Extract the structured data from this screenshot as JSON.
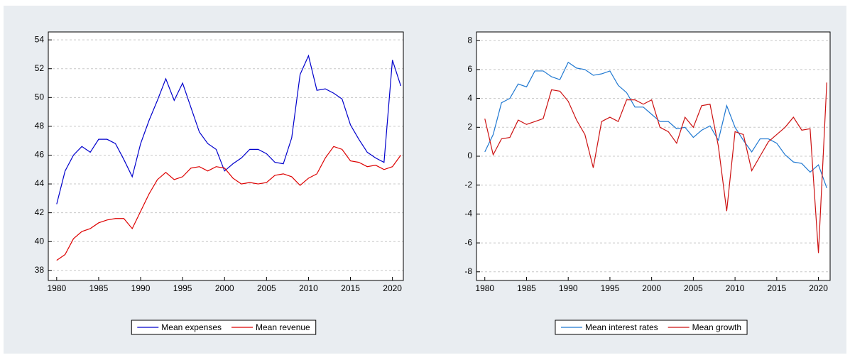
{
  "chart_data": [
    {
      "type": "line",
      "x": [
        1980,
        1981,
        1982,
        1983,
        1984,
        1985,
        1986,
        1987,
        1988,
        1989,
        1990,
        1991,
        1992,
        1993,
        1994,
        1995,
        1996,
        1997,
        1998,
        1999,
        2000,
        2001,
        2002,
        2003,
        2004,
        2005,
        2006,
        2007,
        2008,
        2009,
        2010,
        2011,
        2012,
        2013,
        2014,
        2015,
        2016,
        2017,
        2018,
        2019,
        2020,
        2021
      ],
      "series": [
        {
          "name": "Mean expenses",
          "color": "#0000cc",
          "values": [
            42.6,
            44.9,
            46.0,
            46.6,
            46.2,
            47.1,
            47.1,
            46.8,
            45.7,
            44.5,
            46.8,
            48.4,
            49.8,
            51.3,
            49.8,
            51.0,
            49.3,
            47.6,
            46.8,
            46.4,
            44.9,
            45.4,
            45.8,
            46.4,
            46.4,
            46.1,
            45.5,
            45.4,
            47.2,
            51.6,
            52.9,
            50.5,
            50.6,
            50.3,
            49.9,
            48.1,
            47.1,
            46.2,
            45.8,
            45.5,
            52.6,
            50.8
          ]
        },
        {
          "name": "Mean revenue",
          "color": "#dd0000",
          "values": [
            38.7,
            39.1,
            40.2,
            40.7,
            40.9,
            41.3,
            41.5,
            41.6,
            41.6,
            40.9,
            42.1,
            43.3,
            44.3,
            44.8,
            44.3,
            44.5,
            45.1,
            45.2,
            44.9,
            45.2,
            45.1,
            44.4,
            44.0,
            44.1,
            44.0,
            44.1,
            44.6,
            44.7,
            44.5,
            43.9,
            44.4,
            44.7,
            45.8,
            46.6,
            46.4,
            45.6,
            45.5,
            45.2,
            45.3,
            45.0,
            45.2,
            46.0
          ]
        }
      ],
      "xlim": [
        1979,
        2021.3
      ],
      "xticks": [
        1980,
        1985,
        1990,
        1995,
        2000,
        2005,
        2010,
        2015,
        2020
      ],
      "ylim": [
        37.3,
        54.55
      ],
      "yticks": [
        38,
        40,
        42,
        44,
        46,
        48,
        50,
        52,
        54
      ],
      "grid": true
    },
    {
      "type": "line",
      "x": [
        1980,
        1981,
        1982,
        1983,
        1984,
        1985,
        1986,
        1987,
        1988,
        1989,
        1990,
        1991,
        1992,
        1993,
        1994,
        1995,
        1996,
        1997,
        1998,
        1999,
        2000,
        2001,
        2002,
        2003,
        2004,
        2005,
        2006,
        2007,
        2008,
        2009,
        2010,
        2011,
        2012,
        2013,
        2014,
        2015,
        2016,
        2017,
        2018,
        2019,
        2020,
        2021
      ],
      "series": [
        {
          "name": "Mean interest rates",
          "color": "#1f78d1",
          "values": [
            0.3,
            1.5,
            3.7,
            4.0,
            5.0,
            4.8,
            5.9,
            5.9,
            5.5,
            5.3,
            6.5,
            6.1,
            6.0,
            5.6,
            5.7,
            5.9,
            4.9,
            4.4,
            3.4,
            3.4,
            2.9,
            2.4,
            2.4,
            1.9,
            2.0,
            1.3,
            1.8,
            2.1,
            1.1,
            3.5,
            2.0,
            1.1,
            0.3,
            1.2,
            1.2,
            0.9,
            0.1,
            -0.4,
            -0.5,
            -1.1,
            -0.6,
            -2.2
          ]
        },
        {
          "name": "Mean growth",
          "color": "#cc1111",
          "values": [
            2.6,
            0.1,
            1.2,
            1.3,
            2.5,
            2.2,
            2.4,
            2.6,
            4.6,
            4.5,
            3.8,
            2.5,
            1.5,
            -0.8,
            2.4,
            2.7,
            2.4,
            3.9,
            3.9,
            3.6,
            3.9,
            2.0,
            1.7,
            0.9,
            2.7,
            2.0,
            3.5,
            3.6,
            0.7,
            -3.8,
            1.7,
            1.5,
            -1.0,
            0.0,
            1.0,
            1.5,
            2.0,
            2.7,
            1.8,
            1.9,
            -6.7,
            5.1
          ]
        }
      ],
      "xlim": [
        1979,
        2021.4
      ],
      "xticks": [
        1980,
        1985,
        1990,
        1995,
        2000,
        2005,
        2010,
        2015,
        2020
      ],
      "ylim": [
        -8.6,
        8.6
      ],
      "yticks": [
        -8,
        -6,
        -4,
        -2,
        0,
        2,
        4,
        6,
        8
      ],
      "grid": true
    }
  ]
}
